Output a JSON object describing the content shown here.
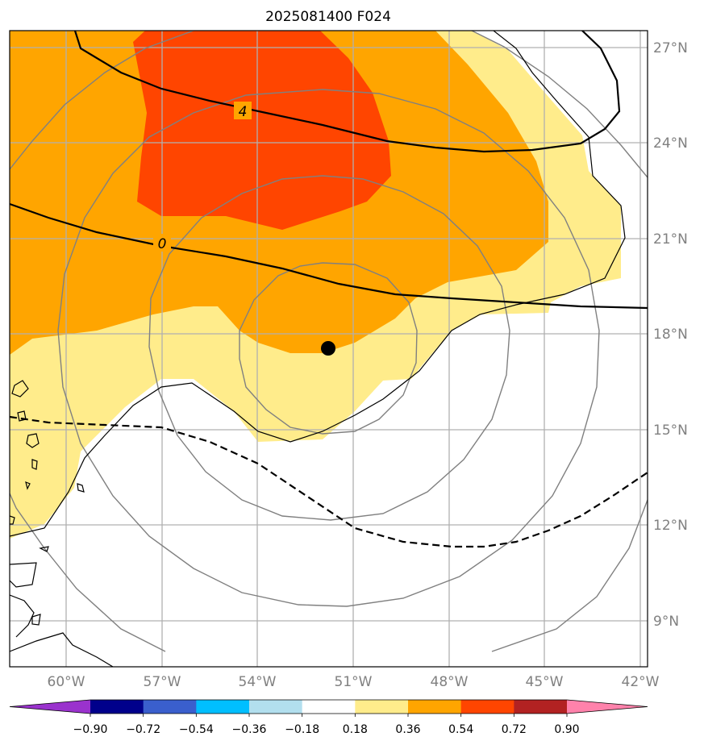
{
  "title": "2025081400 F024",
  "lon_ticks": [
    "60°W",
    "57°W",
    "54°W",
    "51°W",
    "48°W",
    "45°W",
    "42°W"
  ],
  "lat_ticks": [
    "27°N",
    "24°N",
    "21°N",
    "18°N",
    "15°N",
    "12°N",
    "9°N"
  ],
  "contour_labels": [
    "4",
    "0"
  ],
  "colorbar": {
    "ticks": [
      "−0.90",
      "−0.72",
      "−0.54",
      "−0.36",
      "−0.18",
      "0.18",
      "0.36",
      "0.54",
      "0.72",
      "0.90"
    ],
    "colors": [
      "#9a32cd",
      "#00008b",
      "#3a5fcd",
      "#00bfff",
      "#b2dfee",
      "#ffffff",
      "#ffec8b",
      "#ffa500",
      "#ff4500",
      "#b22222",
      "#ff82ab"
    ]
  },
  "storm_center": {
    "lon": -51.7,
    "lat": 17.5
  },
  "fill_colors": {
    "level_018": "#ffec8b",
    "level_036": "#ffa500",
    "level_054": "#ff4500"
  },
  "line_colors": {
    "contour": "#000000",
    "range_ring": "#808080",
    "grid": "#b0b0b0",
    "coast": "#000000"
  }
}
